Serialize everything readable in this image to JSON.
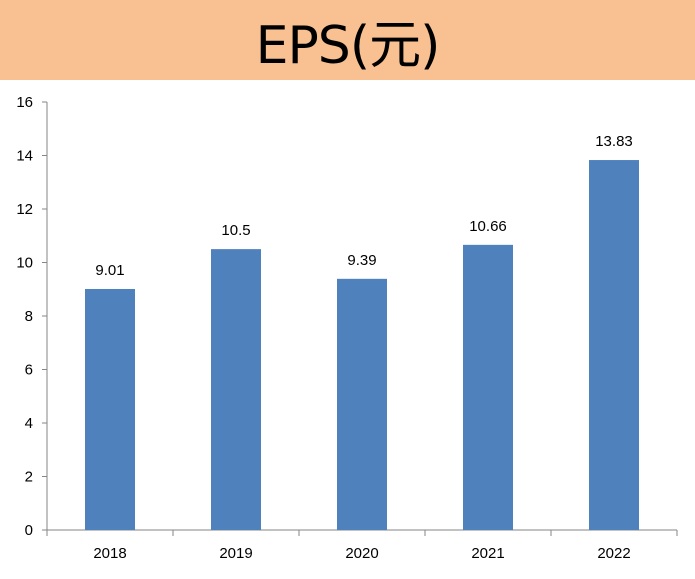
{
  "chart_data": {
    "type": "bar",
    "title": "EPS(元)",
    "xlabel": "",
    "ylabel": "",
    "categories": [
      "2018",
      "2019",
      "2020",
      "2021",
      "2022"
    ],
    "values": [
      9.01,
      10.5,
      9.39,
      10.66,
      13.83
    ],
    "data_labels": [
      "9.01",
      "10.5",
      "9.39",
      "10.66",
      "13.83"
    ],
    "ylim": [
      0,
      16
    ],
    "yticks": [
      0,
      2,
      4,
      6,
      8,
      10,
      12,
      14,
      16
    ],
    "grid": false,
    "legend": "none",
    "colors": {
      "bar": "#4F81BD",
      "title_background": "#F9C191",
      "axis": "#868686"
    }
  }
}
